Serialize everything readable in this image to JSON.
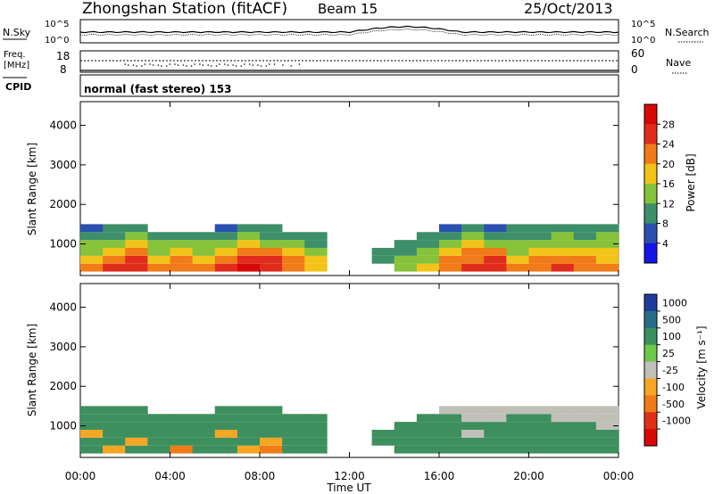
{
  "header": {
    "station": "Zhongshan Station (fitACF)",
    "beam": "Beam 15",
    "date": "25/Oct/2013"
  },
  "panel_labels": {
    "nsky": "N.Sky",
    "nsearch": "N.Search",
    "freq_line1": "Freq.",
    "freq_line2": "[MHz]",
    "nave": "Nave",
    "cpid": "CPID",
    "cpid_value": "normal (fast stereo) 153",
    "noise_top_left": "10^5",
    "noise_bottom_left": "10^0",
    "noise_top_right": "10^5",
    "noise_bottom_right": "10^0",
    "freq_top": "18",
    "freq_bottom": "8",
    "nave_top": "60",
    "nave_bottom": "0"
  },
  "axis": {
    "xlabel": "Time UT",
    "ylabel": "Slant Range [km]",
    "xticks": [
      "00:00",
      "04:00",
      "08:00",
      "12:00",
      "16:00",
      "20:00",
      "00:00"
    ],
    "yticks": [
      "1000",
      "2000",
      "3000",
      "4000"
    ]
  },
  "power_scale": {
    "label": "Power [dB]",
    "ticks": [
      "4",
      "8",
      "12",
      "16",
      "20",
      "24",
      "28"
    ],
    "colors": [
      "#1515e6",
      "#2b50b0",
      "#3d8f6a",
      "#86c23a",
      "#f2c319",
      "#f07b18",
      "#e02c1c",
      "#d80808"
    ]
  },
  "velocity_scale": {
    "label": "Velocity [m s⁻¹]",
    "ticks": [
      "1000",
      "500",
      "100",
      "25",
      "-25",
      "-100",
      "-500",
      "-1000"
    ],
    "colors": [
      "#1e3c9e",
      "#2a6b8a",
      "#3d8f5e",
      "#6fc84a",
      "#c0c0b8",
      "#f5a623",
      "#f07b18",
      "#e03018",
      "#d80808"
    ]
  },
  "chart_data": {
    "type": "heatmap",
    "x_hours": [
      0,
      1,
      2,
      3,
      4,
      5,
      6,
      7,
      8,
      9,
      10,
      11,
      12,
      13,
      14,
      15,
      16,
      17,
      18,
      19,
      20,
      21,
      22,
      23
    ],
    "range_bins_km": [
      400,
      600,
      800,
      1000,
      1200,
      1400
    ],
    "power_dB": [
      [
        20,
        24,
        26,
        20,
        22,
        20,
        24,
        28,
        26,
        22,
        18,
        0,
        0,
        0,
        12,
        16,
        22,
        24,
        26,
        20,
        22,
        24,
        22,
        20
      ],
      [
        18,
        22,
        24,
        18,
        20,
        18,
        22,
        26,
        24,
        20,
        16,
        0,
        0,
        8,
        12,
        14,
        20,
        22,
        24,
        18,
        20,
        22,
        20,
        18
      ],
      [
        14,
        18,
        20,
        14,
        16,
        14,
        18,
        22,
        20,
        16,
        12,
        0,
        0,
        8,
        8,
        12,
        16,
        20,
        20,
        14,
        16,
        18,
        18,
        16
      ],
      [
        12,
        14,
        16,
        12,
        12,
        12,
        14,
        16,
        14,
        12,
        10,
        0,
        0,
        0,
        8,
        10,
        12,
        16,
        14,
        12,
        14,
        14,
        14,
        14
      ],
      [
        8,
        10,
        12,
        8,
        10,
        8,
        10,
        12,
        10,
        8,
        8,
        0,
        0,
        0,
        0,
        8,
        8,
        12,
        10,
        10,
        10,
        12,
        10,
        12
      ],
      [
        6,
        8,
        8,
        0,
        0,
        0,
        6,
        8,
        8,
        0,
        0,
        0,
        0,
        0,
        0,
        0,
        6,
        8,
        6,
        8,
        8,
        8,
        8,
        10
      ]
    ],
    "velocity_ms": [
      [
        100,
        -100,
        100,
        100,
        -500,
        100,
        100,
        -100,
        -500,
        100,
        100,
        0,
        0,
        0,
        100,
        100,
        100,
        100,
        100,
        100,
        100,
        100,
        100,
        100
      ],
      [
        100,
        100,
        -100,
        100,
        100,
        100,
        100,
        100,
        -100,
        100,
        100,
        0,
        0,
        100,
        100,
        100,
        100,
        100,
        100,
        100,
        100,
        100,
        100,
        100
      ],
      [
        -100,
        100,
        100,
        100,
        100,
        100,
        -100,
        100,
        100,
        100,
        100,
        0,
        0,
        100,
        100,
        100,
        100,
        25,
        100,
        100,
        100,
        100,
        100,
        100
      ],
      [
        100,
        100,
        100,
        100,
        100,
        100,
        100,
        100,
        100,
        100,
        100,
        0,
        0,
        0,
        100,
        100,
        100,
        100,
        100,
        100,
        100,
        100,
        100,
        25
      ],
      [
        100,
        100,
        100,
        100,
        100,
        100,
        100,
        100,
        100,
        100,
        100,
        0,
        0,
        0,
        0,
        100,
        100,
        25,
        25,
        100,
        100,
        25,
        25,
        25
      ],
      [
        100,
        100,
        100,
        0,
        0,
        0,
        100,
        100,
        100,
        0,
        0,
        0,
        0,
        0,
        0,
        0,
        25,
        25,
        25,
        25,
        25,
        25,
        25,
        25
      ]
    ],
    "xlabel": "Time UT",
    "ylabel": "Slant Range [km]",
    "xlim": [
      0,
      24
    ],
    "ylim": [
      200,
      4600
    ]
  }
}
